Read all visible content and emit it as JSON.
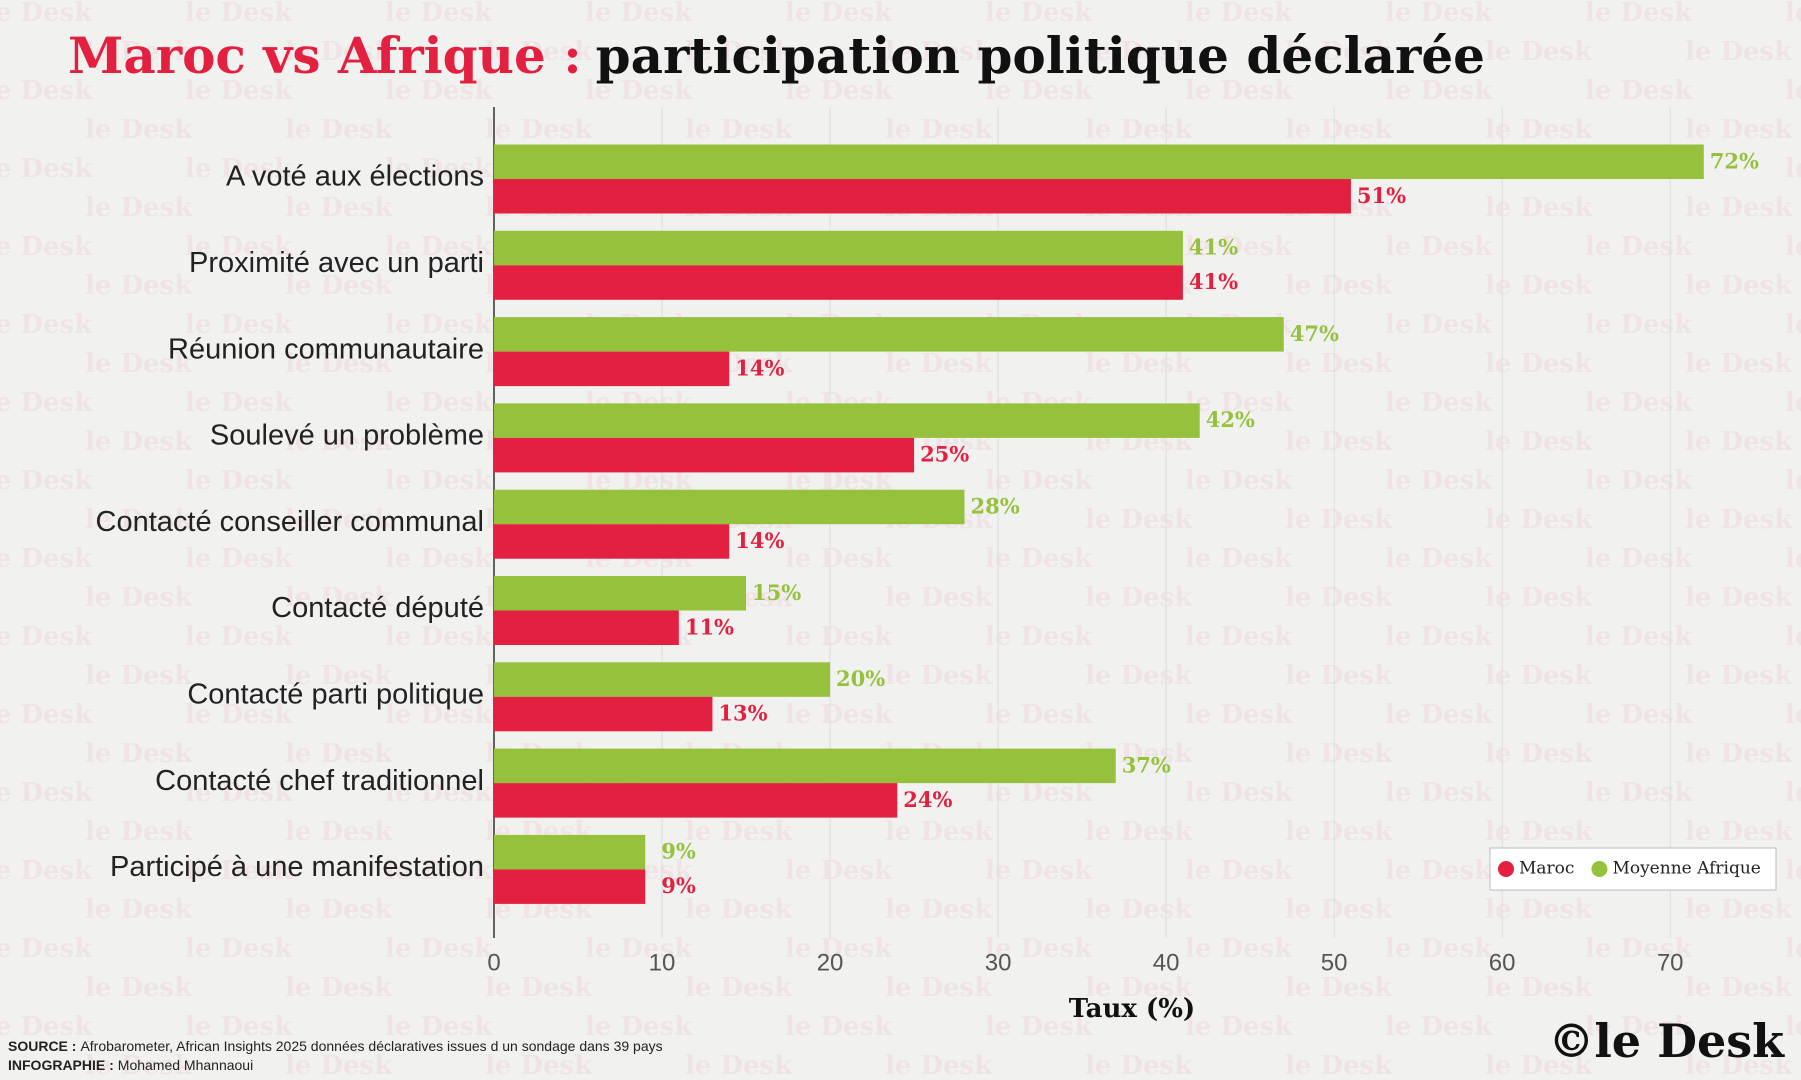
{
  "chart_data": {
    "type": "hbar",
    "title_prefix": "Maroc vs Afrique :",
    "title": "participation politique déclarée",
    "categories": [
      "A voté aux élections",
      "Proximité avec un parti",
      "Réunion communautaire",
      "Soulevé un problème",
      "Contacté conseiller communal",
      "Contacté député",
      "Contacté parti politique",
      "Contacté chef traditionnel",
      "Participé à une manifestation"
    ],
    "series": [
      {
        "name": "Moyenne Afrique",
        "color": "#96c13c",
        "values": [
          72,
          41,
          47,
          42,
          28,
          15,
          20,
          37,
          9
        ],
        "value_labels": [
          "72%",
          "41%",
          "47%",
          "42%",
          "28%",
          "15%",
          "20%",
          "37%",
          "9%"
        ]
      },
      {
        "name": "Maroc",
        "color": "#e32040",
        "values": [
          51,
          41,
          14,
          25,
          14,
          11,
          13,
          24,
          9
        ],
        "value_labels": [
          "51%",
          "41%",
          "14%",
          "25%",
          "14%",
          "11%",
          "13%",
          "24%",
          "9%"
        ]
      }
    ],
    "legend_order": [
      "Maroc",
      "Moyenne Afrique"
    ],
    "xlabel": "Taux (%)",
    "xlim": [
      0,
      76
    ],
    "xticks": [
      0,
      10,
      20,
      30,
      40,
      50,
      60,
      70
    ],
    "grid": true,
    "legend": "lower right",
    "source_label": "SOURCE :",
    "source": "Afrobarometer, African Insights 2025 données déclaratives issues d un sondage dans 39 pays",
    "credit_label": "INFOGRAPHIE :",
    "credit": "Mohamed Mhannaoui",
    "logo": "©le Desk",
    "watermark": "le Desk"
  }
}
